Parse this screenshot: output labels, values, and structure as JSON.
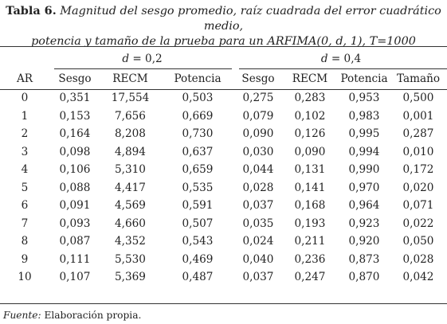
{
  "caption": {
    "label": "Tabla 6.",
    "text_line1": " Magnitud del sesgo promedio, raíz cuadrada del error cuadrático medio,",
    "text_line2": "potencia y tamaño de la prueba para un ARFIMA(0, d, 1), T=1000"
  },
  "groups": [
    {
      "d_symbol": "d",
      "d_value": " = 0,2"
    },
    {
      "d_symbol": "d",
      "d_value": " = 0,4"
    }
  ],
  "headers": [
    "AR",
    "Sesgo",
    "RECM",
    "Potencia",
    "Sesgo",
    "RECM",
    "Potencia",
    "Tamaño"
  ],
  "rows": [
    [
      "0",
      "0,351",
      "17,554",
      "0,503",
      "0,275",
      "0,283",
      "0,953",
      "0,500"
    ],
    [
      "1",
      "0,153",
      "7,656",
      "0,669",
      "0,079",
      "0,102",
      "0,983",
      "0,001"
    ],
    [
      "2",
      "0,164",
      "8,208",
      "0,730",
      "0,090",
      "0,126",
      "0,995",
      "0,287"
    ],
    [
      "3",
      "0,098",
      "4,894",
      "0,637",
      "0,030",
      "0,090",
      "0,994",
      "0,010"
    ],
    [
      "4",
      "0,106",
      "5,310",
      "0,659",
      "0,044",
      "0,131",
      "0,990",
      "0,172"
    ],
    [
      "5",
      "0,088",
      "4,417",
      "0,535",
      "0,028",
      "0,141",
      "0,970",
      "0,020"
    ],
    [
      "6",
      "0,091",
      "4,569",
      "0,591",
      "0,037",
      "0,168",
      "0,964",
      "0,071"
    ],
    [
      "7",
      "0,093",
      "4,660",
      "0,507",
      "0,035",
      "0,193",
      "0,923",
      "0,022"
    ],
    [
      "8",
      "0,087",
      "4,352",
      "0,543",
      "0,024",
      "0,211",
      "0,920",
      "0,050"
    ],
    [
      "9",
      "0,111",
      "5,530",
      "0,469",
      "0,040",
      "0,236",
      "0,873",
      "0,028"
    ],
    [
      "10",
      "0,107",
      "5,369",
      "0,487",
      "0,037",
      "0,247",
      "0,870",
      "0,042"
    ]
  ],
  "source": {
    "label": "Fuente:",
    "text": " Elaboración propia."
  }
}
